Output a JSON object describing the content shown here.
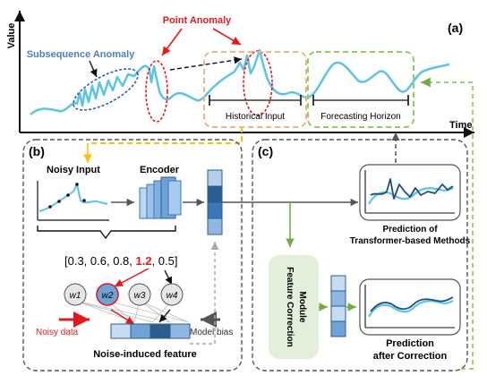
{
  "panels": {
    "a": "(a)",
    "b": "(b)",
    "c": "(c)"
  },
  "axes": {
    "y_label": "Value",
    "x_label": "Time"
  },
  "top": {
    "point_anomaly": "Point Anomaly",
    "subsequence_anomaly": "Subsequence Anomaly",
    "historical_input": "Historical Input",
    "forecasting_horizon": "Forecasting Horizon"
  },
  "left": {
    "noisy_input": "Noisy Input",
    "encoder": "Encoder",
    "vector": {
      "open": "[0.3, 0.6, 0.8, ",
      "highlight": "1.2",
      "close": ", 0.5]"
    },
    "nodes": [
      "w1",
      "w2",
      "w3",
      "w4"
    ],
    "noisy_data": "Noisy data",
    "model_bias": "Model bias",
    "noise_feature": "Noise-induced feature"
  },
  "right": {
    "prediction_transformer_line1": "Prediction of",
    "prediction_transformer_line2": "Transformer-based Methods",
    "feature_correction_line1": "Feature Correction",
    "feature_correction_line2": "Module",
    "prediction_after_line1": "Prediction",
    "prediction_after_line2": "after Correction"
  },
  "colors": {
    "series": "#5bc4e6",
    "prediction": "#1f4e79",
    "anomaly_red": "#e31a1c",
    "anomaly_blue": "#2f5fb3",
    "historical_box": "#f4b183",
    "forecast_box": "#8fcf5a",
    "green_arrow": "#70ad47",
    "orange_arrow": "#ffc000",
    "module_fill": "#e2efda",
    "vector_top": "#6fa3d6",
    "vector_mid": "#3a76b8",
    "vector_dark": "#2d5d8f"
  }
}
